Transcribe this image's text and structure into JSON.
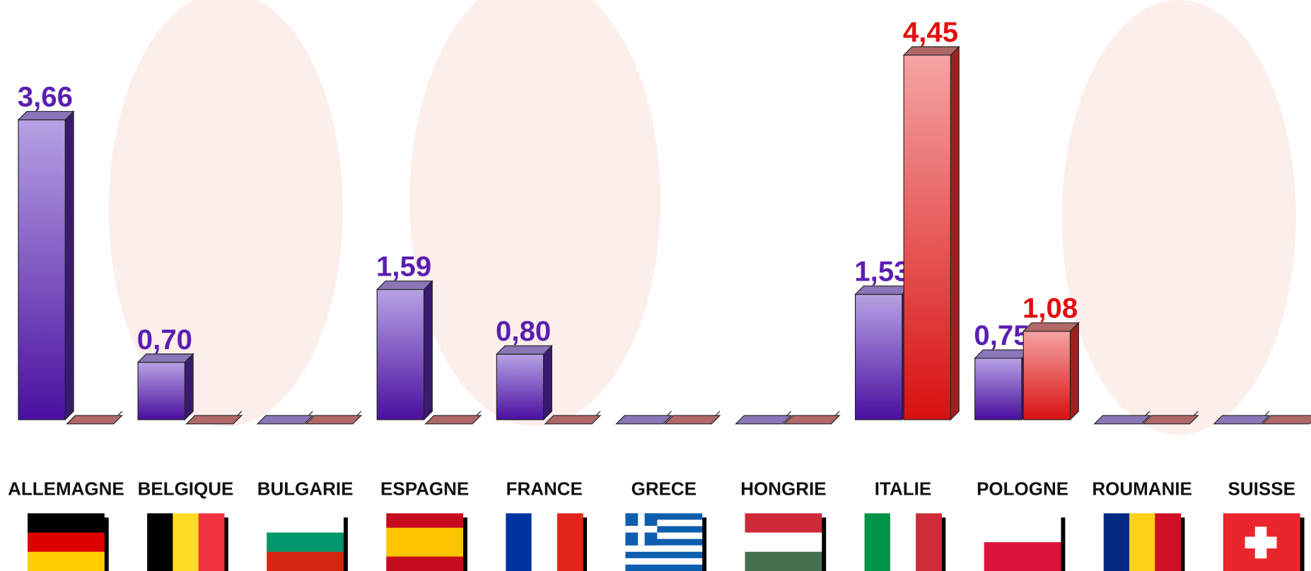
{
  "chart_data": {
    "type": "bar3d",
    "categories": [
      "ALLEMAGNE",
      "BELGIQUE",
      "BULGARIE",
      "ESPAGNE",
      "FRANCE",
      "GRECE",
      "HONGRIE",
      "ITALIE",
      "POLOGNE",
      "ROUMANIE",
      "SUISSE"
    ],
    "series": [
      {
        "color": "#5a1fb0",
        "values": [
          3.66,
          0.7,
          0,
          1.59,
          0.8,
          0,
          0,
          1.53,
          0.75,
          0,
          0
        ],
        "value_labels": [
          "3,66",
          "0,70",
          null,
          "1,59",
          "0,80",
          null,
          null,
          "1,53",
          "0,75",
          null,
          null
        ]
      },
      {
        "color": "#e01010",
        "values": [
          0,
          0,
          0,
          0,
          0,
          0,
          0,
          4.45,
          1.08,
          0,
          0
        ],
        "value_labels": [
          null,
          null,
          null,
          null,
          null,
          null,
          null,
          "4,45",
          "1,08",
          null,
          null
        ]
      }
    ],
    "ylim": [
      0,
      5
    ]
  }
}
